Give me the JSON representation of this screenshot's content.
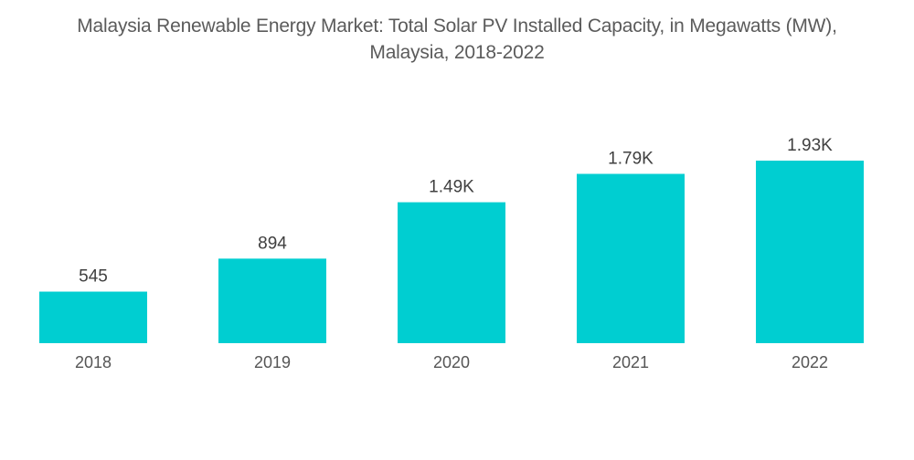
{
  "chart_data": {
    "type": "bar",
    "title_lines": [
      "Malaysia Renewable Energy Market: Total Solar PV Installed Capacity, in Megawatts (MW),",
      "Malaysia, 2018-2022"
    ],
    "title": "Malaysia Renewable Energy Market: Total Solar PV Installed Capacity, in Megawatts (MW), Malaysia, 2018-2022",
    "xlabel": "",
    "ylabel": "",
    "categories": [
      "2018",
      "2019",
      "2020",
      "2021",
      "2022"
    ],
    "values": [
      545,
      894,
      1490,
      1790,
      1930
    ],
    "data_labels": [
      "545",
      "894",
      "1.49K",
      "1.79K",
      "1.93K"
    ],
    "ylim": [
      0,
      1930
    ],
    "grid": false,
    "legend": "none",
    "bar_color": "#00ced1"
  }
}
